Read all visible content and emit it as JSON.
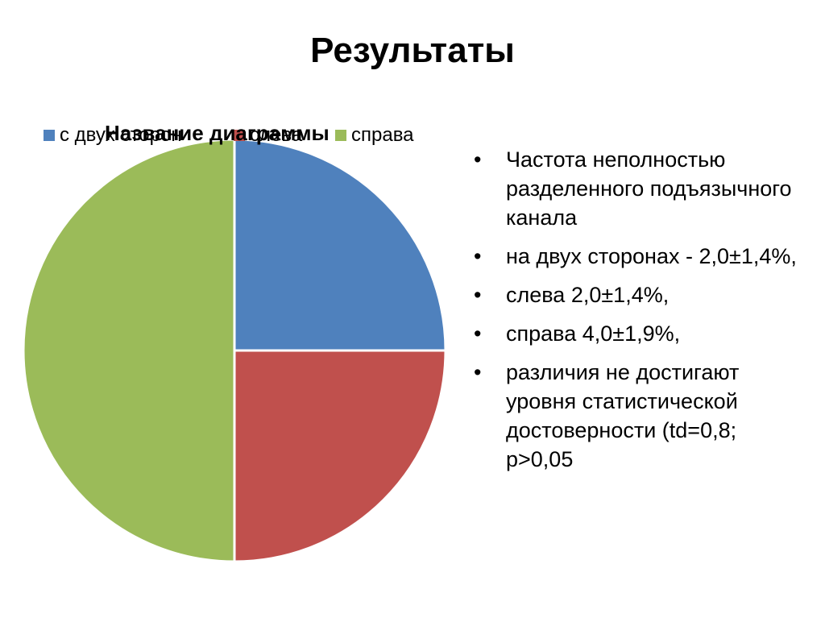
{
  "slide": {
    "title": "Результаты"
  },
  "bullets": [
    "Частота  неполностью разделенного подъязычного канала",
    "на двух сторонах  - 2,0±1,4%,",
    "слева 2,0±1,4%,",
    "справа 4,0±1,9%,",
    "различия не достигают уровня статистической достоверности (td=0,8; p>0,05"
  ],
  "chart_data": {
    "type": "pie",
    "title": "Название диаграммы",
    "categories": [
      "с двух сторон",
      "слева",
      "справа"
    ],
    "values": [
      2.0,
      2.0,
      4.0
    ],
    "colors": [
      "#4f81bd",
      "#c0504d",
      "#9bbb59"
    ],
    "legend": "top",
    "start_angle_deg": 0,
    "direction": "clockwise"
  }
}
